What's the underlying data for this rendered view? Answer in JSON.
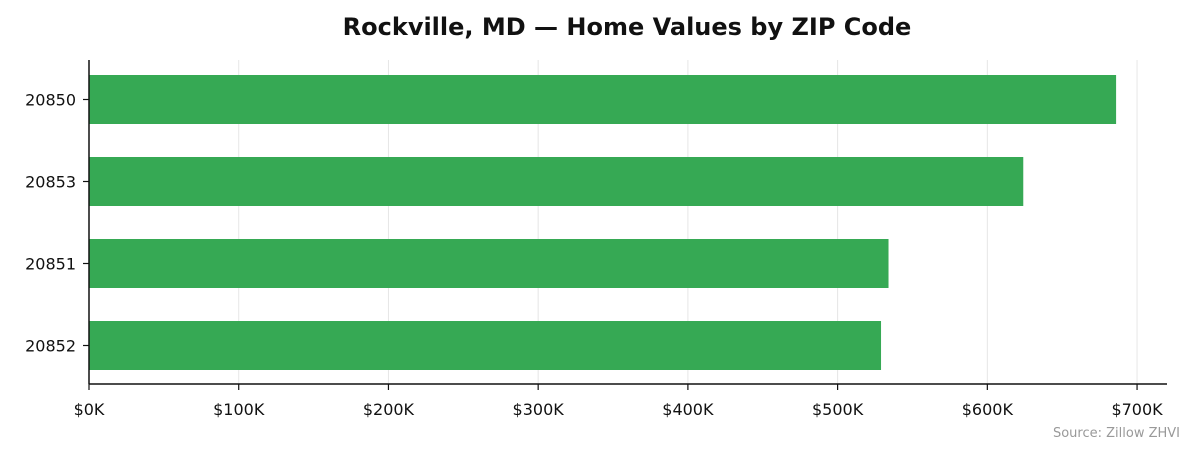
{
  "chart_data": {
    "type": "bar",
    "orientation": "horizontal",
    "title": "Rockville, MD — Home Values by ZIP Code",
    "xlabel": "",
    "ylabel": "",
    "categories": [
      "20850",
      "20853",
      "20851",
      "20852"
    ],
    "values": [
      686000,
      624000,
      534000,
      529000
    ],
    "xlim": [
      0,
      720000
    ],
    "x_ticks": [
      0,
      100000,
      200000,
      300000,
      400000,
      500000,
      600000,
      700000
    ],
    "x_tick_labels": [
      "$0K",
      "$100K",
      "$200K",
      "$300K",
      "$400K",
      "$500K",
      "$600K",
      "$700K"
    ],
    "grid": "x",
    "legend": "none",
    "bar_color": "#36a954",
    "note": "Source: Zillow ZHVI"
  }
}
